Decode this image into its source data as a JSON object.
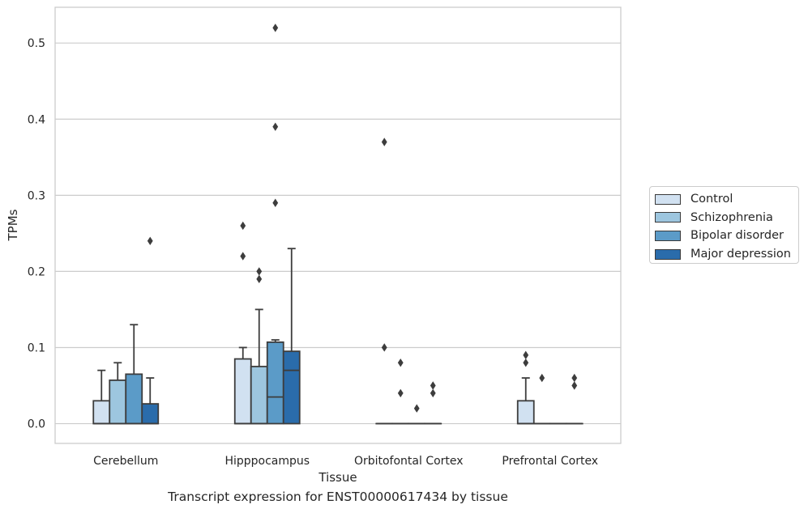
{
  "chart_data": {
    "type": "box",
    "title": "Transcript expression for ENST00000617434 by tissue",
    "xlabel": "Tissue",
    "ylabel": "TPMs",
    "ylim": [
      -0.026,
      0.547
    ],
    "yticks": [
      "0.0",
      "0.1",
      "0.2",
      "0.3",
      "0.4",
      "0.5"
    ],
    "ytick_values": [
      0.0,
      0.1,
      0.2,
      0.3,
      0.4,
      0.5
    ],
    "grid": true,
    "legend_position": "right",
    "categories": [
      "Cerebellum",
      "Hipppocampus",
      "Orbitofontal Cortex",
      "Prefrontal Cortex"
    ],
    "series": [
      {
        "name": "Control",
        "color": "#d1e1f1",
        "boxes": [
          {
            "q1": 0.0,
            "median": 0.0,
            "q3": 0.03,
            "whisker_low": 0.0,
            "whisker_high": 0.07,
            "outliers": []
          },
          {
            "q1": 0.0,
            "median": 0.0,
            "q3": 0.085,
            "whisker_low": 0.0,
            "whisker_high": 0.1,
            "outliers": [
              0.22,
              0.26
            ]
          },
          {
            "q1": 0.0,
            "median": 0.0,
            "q3": 0.0,
            "whisker_low": 0.0,
            "whisker_high": 0.0,
            "outliers": [
              0.1,
              0.37
            ]
          },
          {
            "q1": 0.0,
            "median": 0.0,
            "q3": 0.03,
            "whisker_low": 0.0,
            "whisker_high": 0.06,
            "outliers": [
              0.08,
              0.09
            ]
          }
        ]
      },
      {
        "name": "Schizophrenia",
        "color": "#9dc6df",
        "boxes": [
          {
            "q1": 0.0,
            "median": 0.0,
            "q3": 0.057,
            "whisker_low": 0.0,
            "whisker_high": 0.08,
            "outliers": []
          },
          {
            "q1": 0.0,
            "median": 0.0,
            "q3": 0.075,
            "whisker_low": 0.0,
            "whisker_high": 0.15,
            "outliers": [
              0.19,
              0.2
            ]
          },
          {
            "q1": 0.0,
            "median": 0.0,
            "q3": 0.0,
            "whisker_low": 0.0,
            "whisker_high": 0.0,
            "outliers": [
              0.04,
              0.08
            ]
          },
          {
            "q1": 0.0,
            "median": 0.0,
            "q3": 0.0,
            "whisker_low": 0.0,
            "whisker_high": 0.0,
            "outliers": [
              0.06
            ]
          }
        ]
      },
      {
        "name": "Bipolar disorder",
        "color": "#5b9bc8",
        "boxes": [
          {
            "q1": 0.0,
            "median": 0.0,
            "q3": 0.065,
            "whisker_low": 0.0,
            "whisker_high": 0.13,
            "outliers": []
          },
          {
            "q1": 0.0,
            "median": 0.035,
            "q3": 0.107,
            "whisker_low": 0.0,
            "whisker_high": 0.11,
            "outliers": [
              0.29,
              0.39,
              0.52
            ]
          },
          {
            "q1": 0.0,
            "median": 0.0,
            "q3": 0.0,
            "whisker_low": 0.0,
            "whisker_high": 0.0,
            "outliers": [
              0.02
            ]
          },
          {
            "q1": 0.0,
            "median": 0.0,
            "q3": 0.0,
            "whisker_low": 0.0,
            "whisker_high": 0.0,
            "outliers": []
          }
        ]
      },
      {
        "name": "Major depression",
        "color": "#2a6cab",
        "boxes": [
          {
            "q1": 0.0,
            "median": 0.0,
            "q3": 0.026,
            "whisker_low": 0.0,
            "whisker_high": 0.06,
            "outliers": [
              0.24
            ]
          },
          {
            "q1": 0.0,
            "median": 0.07,
            "q3": 0.095,
            "whisker_low": 0.0,
            "whisker_high": 0.23,
            "outliers": []
          },
          {
            "q1": 0.0,
            "median": 0.0,
            "q3": 0.0,
            "whisker_low": 0.0,
            "whisker_high": 0.0,
            "outliers": [
              0.04,
              0.05
            ]
          },
          {
            "q1": 0.0,
            "median": 0.0,
            "q3": 0.0,
            "whisker_low": 0.0,
            "whisker_high": 0.0,
            "outliers": [
              0.05,
              0.06
            ]
          }
        ]
      }
    ]
  }
}
